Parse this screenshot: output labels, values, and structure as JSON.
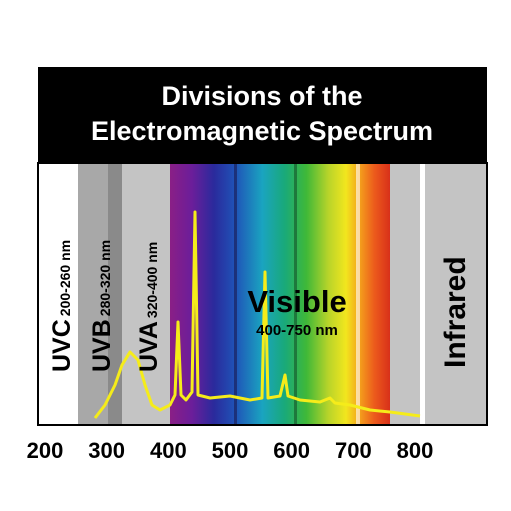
{
  "header": {
    "title_line1": "Divisions of the",
    "title_line2": "Electromagnetic Spectrum"
  },
  "bands": [
    {
      "label": "UVC",
      "range": "200-260 nm"
    },
    {
      "label": "UVB",
      "range": "280-320 nm"
    },
    {
      "label": "UVA",
      "range": "320-400 nm"
    },
    {
      "label": "Visible",
      "range": "400-750 nm"
    },
    {
      "label": "Infrared"
    }
  ],
  "axis": {
    "ticks": [
      200,
      300,
      400,
      500,
      600,
      700,
      800
    ]
  }
}
